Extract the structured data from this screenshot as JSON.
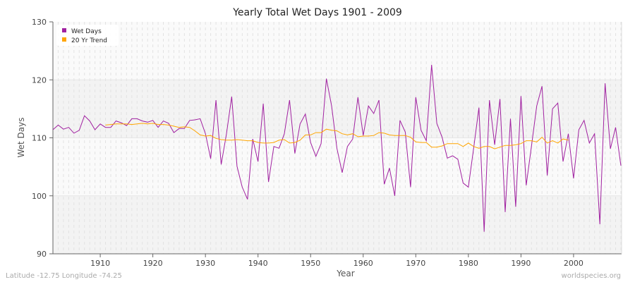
{
  "chart_data": {
    "type": "line",
    "title": "Yearly Total Wet Days 1901 - 2009",
    "xlabel": "Year",
    "ylabel": "Wet Days",
    "xlim": [
      1901,
      2009
    ],
    "ylim": [
      90,
      130
    ],
    "xticks": [
      1910,
      1920,
      1930,
      1940,
      1950,
      1960,
      1970,
      1980,
      1990,
      2000
    ],
    "yticks": [
      90,
      100,
      110,
      120,
      130
    ],
    "grid": true,
    "legend_position": "top-left",
    "series": [
      {
        "name": "Wet Days",
        "color": "#a020a0",
        "x_start": 1901,
        "values": [
          111.4,
          112.2,
          111.5,
          111.8,
          110.8,
          111.3,
          113.8,
          112.9,
          111.4,
          112.4,
          111.8,
          111.8,
          112.9,
          112.6,
          112.1,
          113.3,
          113.3,
          112.9,
          112.7,
          113.0,
          111.8,
          112.9,
          112.5,
          110.9,
          111.6,
          111.6,
          113.0,
          113.1,
          113.3,
          110.7,
          106.4,
          116.5,
          105.4,
          110.7,
          117.1,
          105.1,
          101.5,
          99.4,
          109.8,
          105.9,
          115.9,
          102.4,
          108.5,
          108.2,
          110.7,
          116.5,
          107.3,
          112.4,
          114.1,
          109.2,
          106.8,
          109.0,
          120.2,
          115.5,
          108.2,
          104.0,
          108.5,
          109.8,
          117.0,
          110.4,
          115.5,
          114.2,
          116.5,
          102.0,
          104.8,
          100.0,
          113.0,
          111.0,
          101.5,
          117.0,
          111.3,
          109.5,
          122.6,
          112.5,
          110.1,
          106.5,
          106.9,
          106.3,
          102.2,
          101.5,
          108.2,
          115.2,
          93.8,
          116.5,
          108.8,
          116.7,
          97.2,
          113.3,
          98.1,
          117.2,
          101.8,
          108.6,
          115.5,
          118.9,
          103.5,
          115.0,
          116.0,
          105.9,
          110.7,
          103.0,
          111.4,
          113.0,
          109.1,
          110.7,
          95.1,
          119.4,
          108.1,
          111.8,
          105.2
        ]
      },
      {
        "name": "20 Yr Trend",
        "color": "#ffa500",
        "x_start": 1911,
        "values": [
          112.2,
          112.3,
          112.4,
          112.4,
          112.4,
          112.3,
          112.4,
          112.5,
          112.4,
          112.5,
          112.3,
          112.3,
          112.2,
          112.0,
          111.8,
          111.9,
          111.8,
          111.2,
          110.5,
          110.3,
          110.4,
          109.9,
          109.7,
          109.6,
          109.6,
          109.7,
          109.6,
          109.5,
          109.5,
          109.2,
          109.1,
          109.1,
          109.2,
          109.6,
          109.7,
          109.1,
          109.2,
          109.6,
          110.5,
          110.5,
          110.9,
          110.9,
          111.5,
          111.3,
          111.2,
          110.7,
          110.5,
          110.7,
          110.2,
          110.3,
          110.3,
          110.4,
          110.9,
          110.8,
          110.5,
          110.4,
          110.4,
          110.4,
          110.1,
          109.3,
          109.2,
          109.2,
          108.4,
          108.4,
          108.6,
          109.0,
          109.0,
          109.0,
          108.5,
          109.1,
          108.5,
          108.2,
          108.5,
          108.5,
          108.1,
          108.4,
          108.7,
          108.7,
          108.8,
          109.0,
          109.5,
          109.5,
          109.3,
          110.1,
          109.1,
          109.5,
          109.1,
          109.8,
          109.6
        ]
      }
    ]
  },
  "footer": {
    "left": "Latitude -12.75 Longitude -74.25",
    "right": "worldspecies.org"
  }
}
